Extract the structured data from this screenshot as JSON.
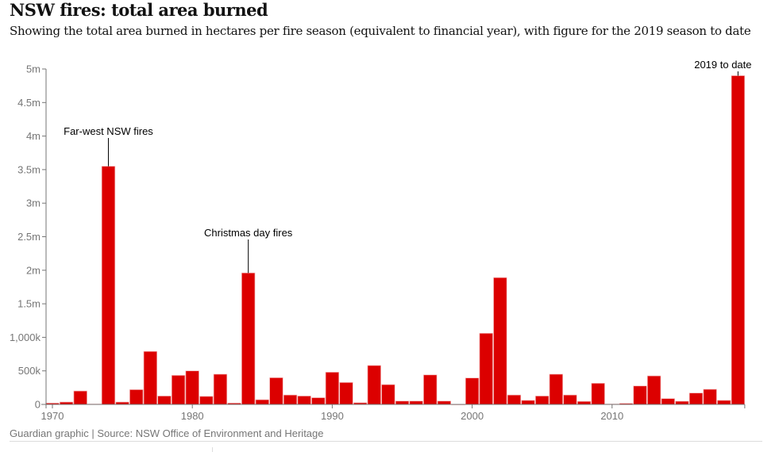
{
  "title": "NSW fires: total area burned",
  "subtitle": "Showing the total area burned in hectares per fire season (equivalent to financial year), with figure for the 2019 season to date",
  "footer": "Guardian graphic | Source: NSW Office of Environment and Heritage",
  "chart_data": {
    "type": "bar",
    "title": "NSW fires: total area burned",
    "xlabel": "",
    "ylabel": "",
    "ylim": [
      0,
      5000000
    ],
    "bar_color": "#dc0000",
    "grid": false,
    "y_ticks": [
      {
        "value": 0,
        "label": "0"
      },
      {
        "value": 500000,
        "label": "500k"
      },
      {
        "value": 1000000,
        "label": "1,000k"
      },
      {
        "value": 1500000,
        "label": "1.5m"
      },
      {
        "value": 2000000,
        "label": "2m"
      },
      {
        "value": 2500000,
        "label": "2.5m"
      },
      {
        "value": 3000000,
        "label": "3m"
      },
      {
        "value": 3500000,
        "label": "3.5m"
      },
      {
        "value": 4000000,
        "label": "4m"
      },
      {
        "value": 4500000,
        "label": "4.5m"
      },
      {
        "value": 5000000,
        "label": "5m"
      }
    ],
    "x_ticks": [
      {
        "value": 1970,
        "label": "1970"
      },
      {
        "value": 1980,
        "label": "1980"
      },
      {
        "value": 1990,
        "label": "1990"
      },
      {
        "value": 2000,
        "label": "2000"
      },
      {
        "value": 2010,
        "label": "2010"
      }
    ],
    "x": [
      1970,
      1971,
      1972,
      1973,
      1974,
      1975,
      1976,
      1977,
      1978,
      1979,
      1980,
      1981,
      1982,
      1983,
      1984,
      1985,
      1986,
      1987,
      1988,
      1989,
      1990,
      1991,
      1992,
      1993,
      1994,
      1995,
      1996,
      1997,
      1998,
      1999,
      2000,
      2001,
      2002,
      2003,
      2004,
      2005,
      2006,
      2007,
      2008,
      2009,
      2010,
      2011,
      2012,
      2013,
      2014,
      2015,
      2016,
      2017,
      2018,
      2019
    ],
    "values": [
      20000,
      35000,
      200000,
      5000,
      3550000,
      35000,
      220000,
      790000,
      125000,
      433000,
      500000,
      120000,
      450000,
      20000,
      1960000,
      70000,
      398000,
      140000,
      125000,
      100000,
      480000,
      327000,
      25000,
      580000,
      295000,
      50000,
      50000,
      440000,
      50000,
      0,
      394000,
      1060000,
      1890000,
      140000,
      60000,
      125000,
      450000,
      140000,
      45000,
      315000,
      5000,
      15000,
      275000,
      425000,
      87000,
      47000,
      170000,
      225000,
      60000,
      4900000
    ],
    "annotations": [
      {
        "x": 1974,
        "text": "Far-west NSW fires"
      },
      {
        "x": 1984,
        "text": "Christmas day fires"
      },
      {
        "x": 2019,
        "text": "2019 to date"
      }
    ]
  }
}
